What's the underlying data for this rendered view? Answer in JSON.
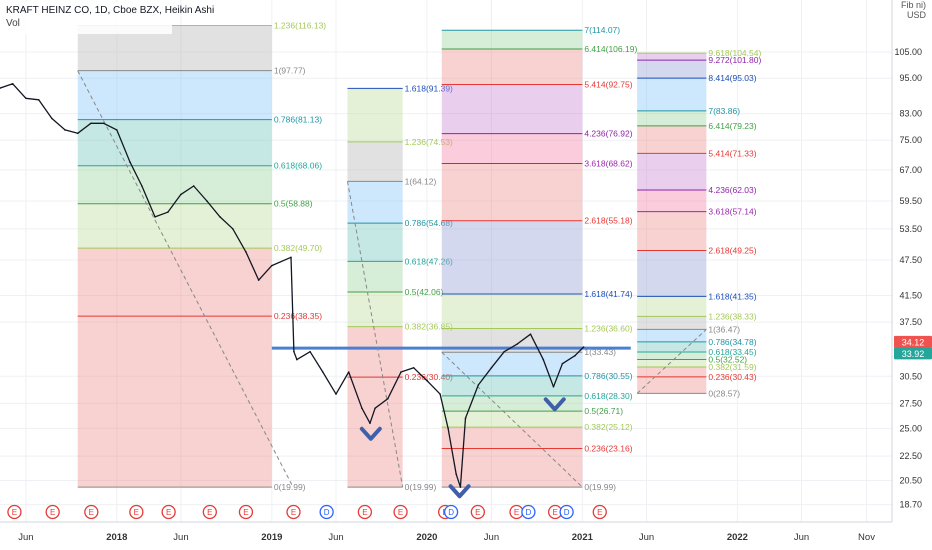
{
  "header": {
    "title": "KRAFT HEINZ CO, 1D, Cboe BZX, Heikin Ashi",
    "sub": "Vol"
  },
  "axis": {
    "unit_line1": "Fib ni)",
    "unit_line2": "USD"
  },
  "colors": {
    "down_badge": "#ef5350",
    "up_badge": "#26a69a",
    "trendline": "#4a7fd4",
    "price": "#131722"
  },
  "chart_data": {
    "type": "line",
    "title": "KRAFT HEINZ CO, 1D, Cboe BZX, Heikin Ashi",
    "y_scale": "log",
    "ylim": [
      17.5,
      128
    ],
    "xlim": [
      "2017-04-01",
      "2022-12-31"
    ],
    "y_ticks": [
      "105.00",
      "95.00",
      "83.00",
      "75.00",
      "67.00",
      "59.50",
      "53.50",
      "47.50",
      "41.50",
      "37.50",
      "30.50",
      "27.50",
      "25.00",
      "22.50",
      "20.50",
      "18.70"
    ],
    "x_ticks": [
      {
        "label": "Jun",
        "date": "2017-06-01"
      },
      {
        "label": "2018",
        "date": "2018-01-01"
      },
      {
        "label": "Jun",
        "date": "2018-06-01"
      },
      {
        "label": "2019",
        "date": "2019-01-01"
      },
      {
        "label": "Jun",
        "date": "2019-06-01"
      },
      {
        "label": "2020",
        "date": "2020-01-01"
      },
      {
        "label": "Jun",
        "date": "2020-06-01"
      },
      {
        "label": "2021",
        "date": "2021-01-01"
      },
      {
        "label": "Jun",
        "date": "2021-06-01"
      },
      {
        "label": "2022",
        "date": "2022-01-01"
      },
      {
        "label": "Jun",
        "date": "2022-06-01"
      },
      {
        "label": "Nov",
        "date": "2022-11-01"
      }
    ],
    "price_badges": [
      {
        "label": "34.12",
        "value": 34.12,
        "color": "#ef5350"
      },
      {
        "label": "33.92",
        "value": 33.92,
        "color": "#26a69a"
      }
    ],
    "price_series": {
      "name": "",
      "points": [
        [
          "2017-04-01",
          91.5
        ],
        [
          "2017-05-01",
          93
        ],
        [
          "2017-06-01",
          88
        ],
        [
          "2017-07-01",
          87.5
        ],
        [
          "2017-08-01",
          81.5
        ],
        [
          "2017-09-01",
          78
        ],
        [
          "2017-10-01",
          77
        ],
        [
          "2017-11-01",
          80
        ],
        [
          "2017-12-01",
          80
        ],
        [
          "2018-01-01",
          78
        ],
        [
          "2018-02-01",
          69
        ],
        [
          "2018-03-01",
          63
        ],
        [
          "2018-04-01",
          56
        ],
        [
          "2018-05-01",
          57
        ],
        [
          "2018-06-01",
          61
        ],
        [
          "2018-07-01",
          63
        ],
        [
          "2018-08-01",
          59.5
        ],
        [
          "2018-09-01",
          56
        ],
        [
          "2018-10-01",
          53.5
        ],
        [
          "2018-11-01",
          49
        ],
        [
          "2018-12-01",
          44
        ],
        [
          "2019-01-01",
          46.5
        ],
        [
          "2019-02-15",
          48
        ],
        [
          "2019-02-22",
          33.5
        ],
        [
          "2019-03-01",
          32.5
        ],
        [
          "2019-04-01",
          33.5
        ],
        [
          "2019-05-01",
          31
        ],
        [
          "2019-06-01",
          28.5
        ],
        [
          "2019-07-01",
          31
        ],
        [
          "2019-08-01",
          27
        ],
        [
          "2019-08-20",
          25.5
        ],
        [
          "2019-09-01",
          27
        ],
        [
          "2019-10-01",
          28
        ],
        [
          "2019-11-01",
          31
        ],
        [
          "2019-12-01",
          31.5
        ],
        [
          "2020-01-01",
          30
        ],
        [
          "2020-02-01",
          28.5
        ],
        [
          "2020-02-20",
          25
        ],
        [
          "2020-03-10",
          21
        ],
        [
          "2020-03-20",
          19.99
        ],
        [
          "2020-04-01",
          26
        ],
        [
          "2020-05-01",
          29.5
        ],
        [
          "2020-06-01",
          31.5
        ],
        [
          "2020-07-01",
          33.5
        ],
        [
          "2020-08-01",
          34.5
        ],
        [
          "2020-09-01",
          35.8
        ],
        [
          "2020-10-01",
          32.5
        ],
        [
          "2020-10-25",
          29.3
        ],
        [
          "2020-11-15",
          32
        ],
        [
          "2020-12-15",
          33
        ],
        [
          "2021-01-04",
          34.1
        ]
      ]
    },
    "trendlines": [
      {
        "from": [
          "2019-01-01",
          33.96
        ],
        "to": [
          "2021-04-25",
          33.96
        ],
        "color": "#4a7fd4",
        "width": 3
      },
      {
        "from": [
          "2017-10-01",
          97.77
        ],
        "to": [
          "2019-02-20",
          19.99
        ],
        "color": "#888888",
        "width": 1,
        "dashed": true
      },
      {
        "from": [
          "2019-06-28",
          64.12
        ],
        "to": [
          "2019-11-05",
          19.99
        ],
        "color": "#888888",
        "width": 1,
        "dashed": true
      },
      {
        "from": [
          "2020-02-05",
          33.43
        ],
        "to": [
          "2021-01-01",
          19.99
        ],
        "color": "#888888",
        "width": 1,
        "dashed": true
      },
      {
        "from": [
          "2021-05-10",
          28.57
        ],
        "to": [
          "2021-10-20",
          36.47
        ],
        "color": "#888888",
        "width": 1,
        "dashed": true
      }
    ],
    "fib_blocks": [
      {
        "start": "2017-10-01",
        "end": "2019-01-01",
        "label_date": "2019-01-01",
        "levels": [
          {
            "ratio": "0",
            "value": 19.99,
            "color": "#888888"
          },
          {
            "ratio": "0.236",
            "value": 38.35,
            "color": "#e53935"
          },
          {
            "ratio": "0.382",
            "value": 49.7,
            "color": "#a5c85a"
          },
          {
            "ratio": "0.5",
            "value": 58.88,
            "color": "#43a047"
          },
          {
            "ratio": "0.618",
            "value": 68.06,
            "color": "#26a69a"
          },
          {
            "ratio": "0.786",
            "value": 81.13,
            "color": "#2196a6"
          },
          {
            "ratio": "1",
            "value": 97.77,
            "color": "#888888"
          },
          {
            "ratio": "1.236",
            "value": 116.13,
            "color": "#a5c85a"
          }
        ]
      },
      {
        "start": "2019-06-28",
        "end": "2019-11-05",
        "label_date": "2019-11-05",
        "levels": [
          {
            "ratio": "0",
            "value": 19.99,
            "color": "#888888"
          },
          {
            "ratio": "0.236",
            "value": 30.4,
            "color": "#e53935"
          },
          {
            "ratio": "0.382",
            "value": 36.85,
            "color": "#a5c85a"
          },
          {
            "ratio": "0.5",
            "value": 42.06,
            "color": "#43a047"
          },
          {
            "ratio": "0.618",
            "value": 47.26,
            "color": "#26a69a"
          },
          {
            "ratio": "0.786",
            "value": 54.68,
            "color": "#2196a6"
          },
          {
            "ratio": "1",
            "value": 64.12,
            "color": "#888888"
          },
          {
            "ratio": "1.236",
            "value": 74.53,
            "color": "#a5c85a"
          },
          {
            "ratio": "1.618",
            "value": 91.39,
            "color": "#1e4fb8"
          }
        ]
      },
      {
        "start": "2020-02-05",
        "end": "2021-01-01",
        "label_date": "2021-01-01",
        "levels": [
          {
            "ratio": "0",
            "value": 19.99,
            "color": "#888888"
          },
          {
            "ratio": "0.236",
            "value": 23.16,
            "color": "#e53935"
          },
          {
            "ratio": "0.382",
            "value": 25.12,
            "color": "#a5c85a"
          },
          {
            "ratio": "0.5",
            "value": 26.71,
            "color": "#43a047"
          },
          {
            "ratio": "0.618",
            "value": 28.3,
            "color": "#26a69a"
          },
          {
            "ratio": "0.786",
            "value": 30.55,
            "color": "#2196a6"
          },
          {
            "ratio": "1",
            "value": 33.43,
            "color": "#888888"
          },
          {
            "ratio": "1.236",
            "value": 36.6,
            "color": "#a5c85a"
          },
          {
            "ratio": "1.618",
            "value": 41.74,
            "color": "#1e4fb8"
          },
          {
            "ratio": "2.618",
            "value": 55.18,
            "color": "#e53935"
          },
          {
            "ratio": "3.618",
            "value": 68.62,
            "color": "#9c27b0"
          },
          {
            "ratio": "4.236",
            "value": 76.92,
            "color": "#8e24aa"
          },
          {
            "ratio": "5.414",
            "value": 92.75,
            "color": "#e53935"
          },
          {
            "ratio": "6.414",
            "value": 106.19,
            "color": "#43a047"
          },
          {
            "ratio": "7",
            "value": 114.07,
            "color": "#2196a6"
          }
        ]
      },
      {
        "start": "2021-05-10",
        "end": "2021-10-20",
        "label_date": "2021-10-20",
        "levels": [
          {
            "ratio": "0",
            "value": 28.57,
            "color": "#888888"
          },
          {
            "ratio": "0.236",
            "value": 30.43,
            "color": "#e53935"
          },
          {
            "ratio": "0.382",
            "value": 31.59,
            "color": "#a5c85a"
          },
          {
            "ratio": "0.5",
            "value": 32.52,
            "color": "#43a047"
          },
          {
            "ratio": "0.618",
            "value": 33.45,
            "color": "#26a69a"
          },
          {
            "ratio": "0.786",
            "value": 34.78,
            "color": "#2196a6"
          },
          {
            "ratio": "1",
            "value": 36.47,
            "color": "#888888"
          },
          {
            "ratio": "1.236",
            "value": 38.33,
            "color": "#a5c85a"
          },
          {
            "ratio": "1.618",
            "value": 41.35,
            "color": "#1e4fb8"
          },
          {
            "ratio": "2.618",
            "value": 49.25,
            "color": "#e53935"
          },
          {
            "ratio": "3.618",
            "value": 57.14,
            "color": "#9c27b0"
          },
          {
            "ratio": "4.236",
            "value": 62.03,
            "color": "#8e24aa"
          },
          {
            "ratio": "5.414",
            "value": 71.33,
            "color": "#e53935"
          },
          {
            "ratio": "6.414",
            "value": 79.23,
            "color": "#43a047"
          },
          {
            "ratio": "7",
            "value": 83.86,
            "color": "#2196a6"
          },
          {
            "ratio": "8.414",
            "value": 95.03,
            "color": "#1e4fb8"
          },
          {
            "ratio": "9.272",
            "value": 101.8,
            "color": "#8e24aa"
          },
          {
            "ratio": "9.618",
            "value": 104.54,
            "color": "#a5c85a"
          }
        ]
      }
    ],
    "checkmarks": [
      {
        "date": "2019-08-22",
        "value": 24.4
      },
      {
        "date": "2020-03-18",
        "value": 19.6
      },
      {
        "date": "2020-10-28",
        "value": 27.3
      }
    ],
    "event_markers": [
      {
        "date": "2017-05-05",
        "label": "E",
        "kind": "earnings"
      },
      {
        "date": "2017-08-03",
        "label": "E",
        "kind": "earnings"
      },
      {
        "date": "2017-11-02",
        "label": "E",
        "kind": "earnings"
      },
      {
        "date": "2018-02-16",
        "label": "E",
        "kind": "earnings"
      },
      {
        "date": "2018-05-03",
        "label": "E",
        "kind": "earnings"
      },
      {
        "date": "2018-08-08",
        "label": "E",
        "kind": "earnings"
      },
      {
        "date": "2018-11-01",
        "label": "E",
        "kind": "earnings"
      },
      {
        "date": "2019-02-21",
        "label": "E",
        "kind": "earnings"
      },
      {
        "date": "2019-05-10",
        "label": "D",
        "kind": "dividend"
      },
      {
        "date": "2019-08-08",
        "label": "E",
        "kind": "earnings"
      },
      {
        "date": "2019-10-31",
        "label": "E",
        "kind": "earnings"
      },
      {
        "date": "2020-02-13",
        "label": "E",
        "kind": "earnings"
      },
      {
        "date": "2020-02-27",
        "label": "D",
        "kind": "dividend"
      },
      {
        "date": "2020-04-30",
        "label": "E",
        "kind": "earnings"
      },
      {
        "date": "2020-07-30",
        "label": "E",
        "kind": "earnings"
      },
      {
        "date": "2020-08-27",
        "label": "D",
        "kind": "dividend"
      },
      {
        "date": "2020-10-29",
        "label": "E",
        "kind": "earnings"
      },
      {
        "date": "2020-11-25",
        "label": "D",
        "kind": "dividend"
      },
      {
        "date": "2021-02-11",
        "label": "E",
        "kind": "earnings"
      }
    ]
  }
}
